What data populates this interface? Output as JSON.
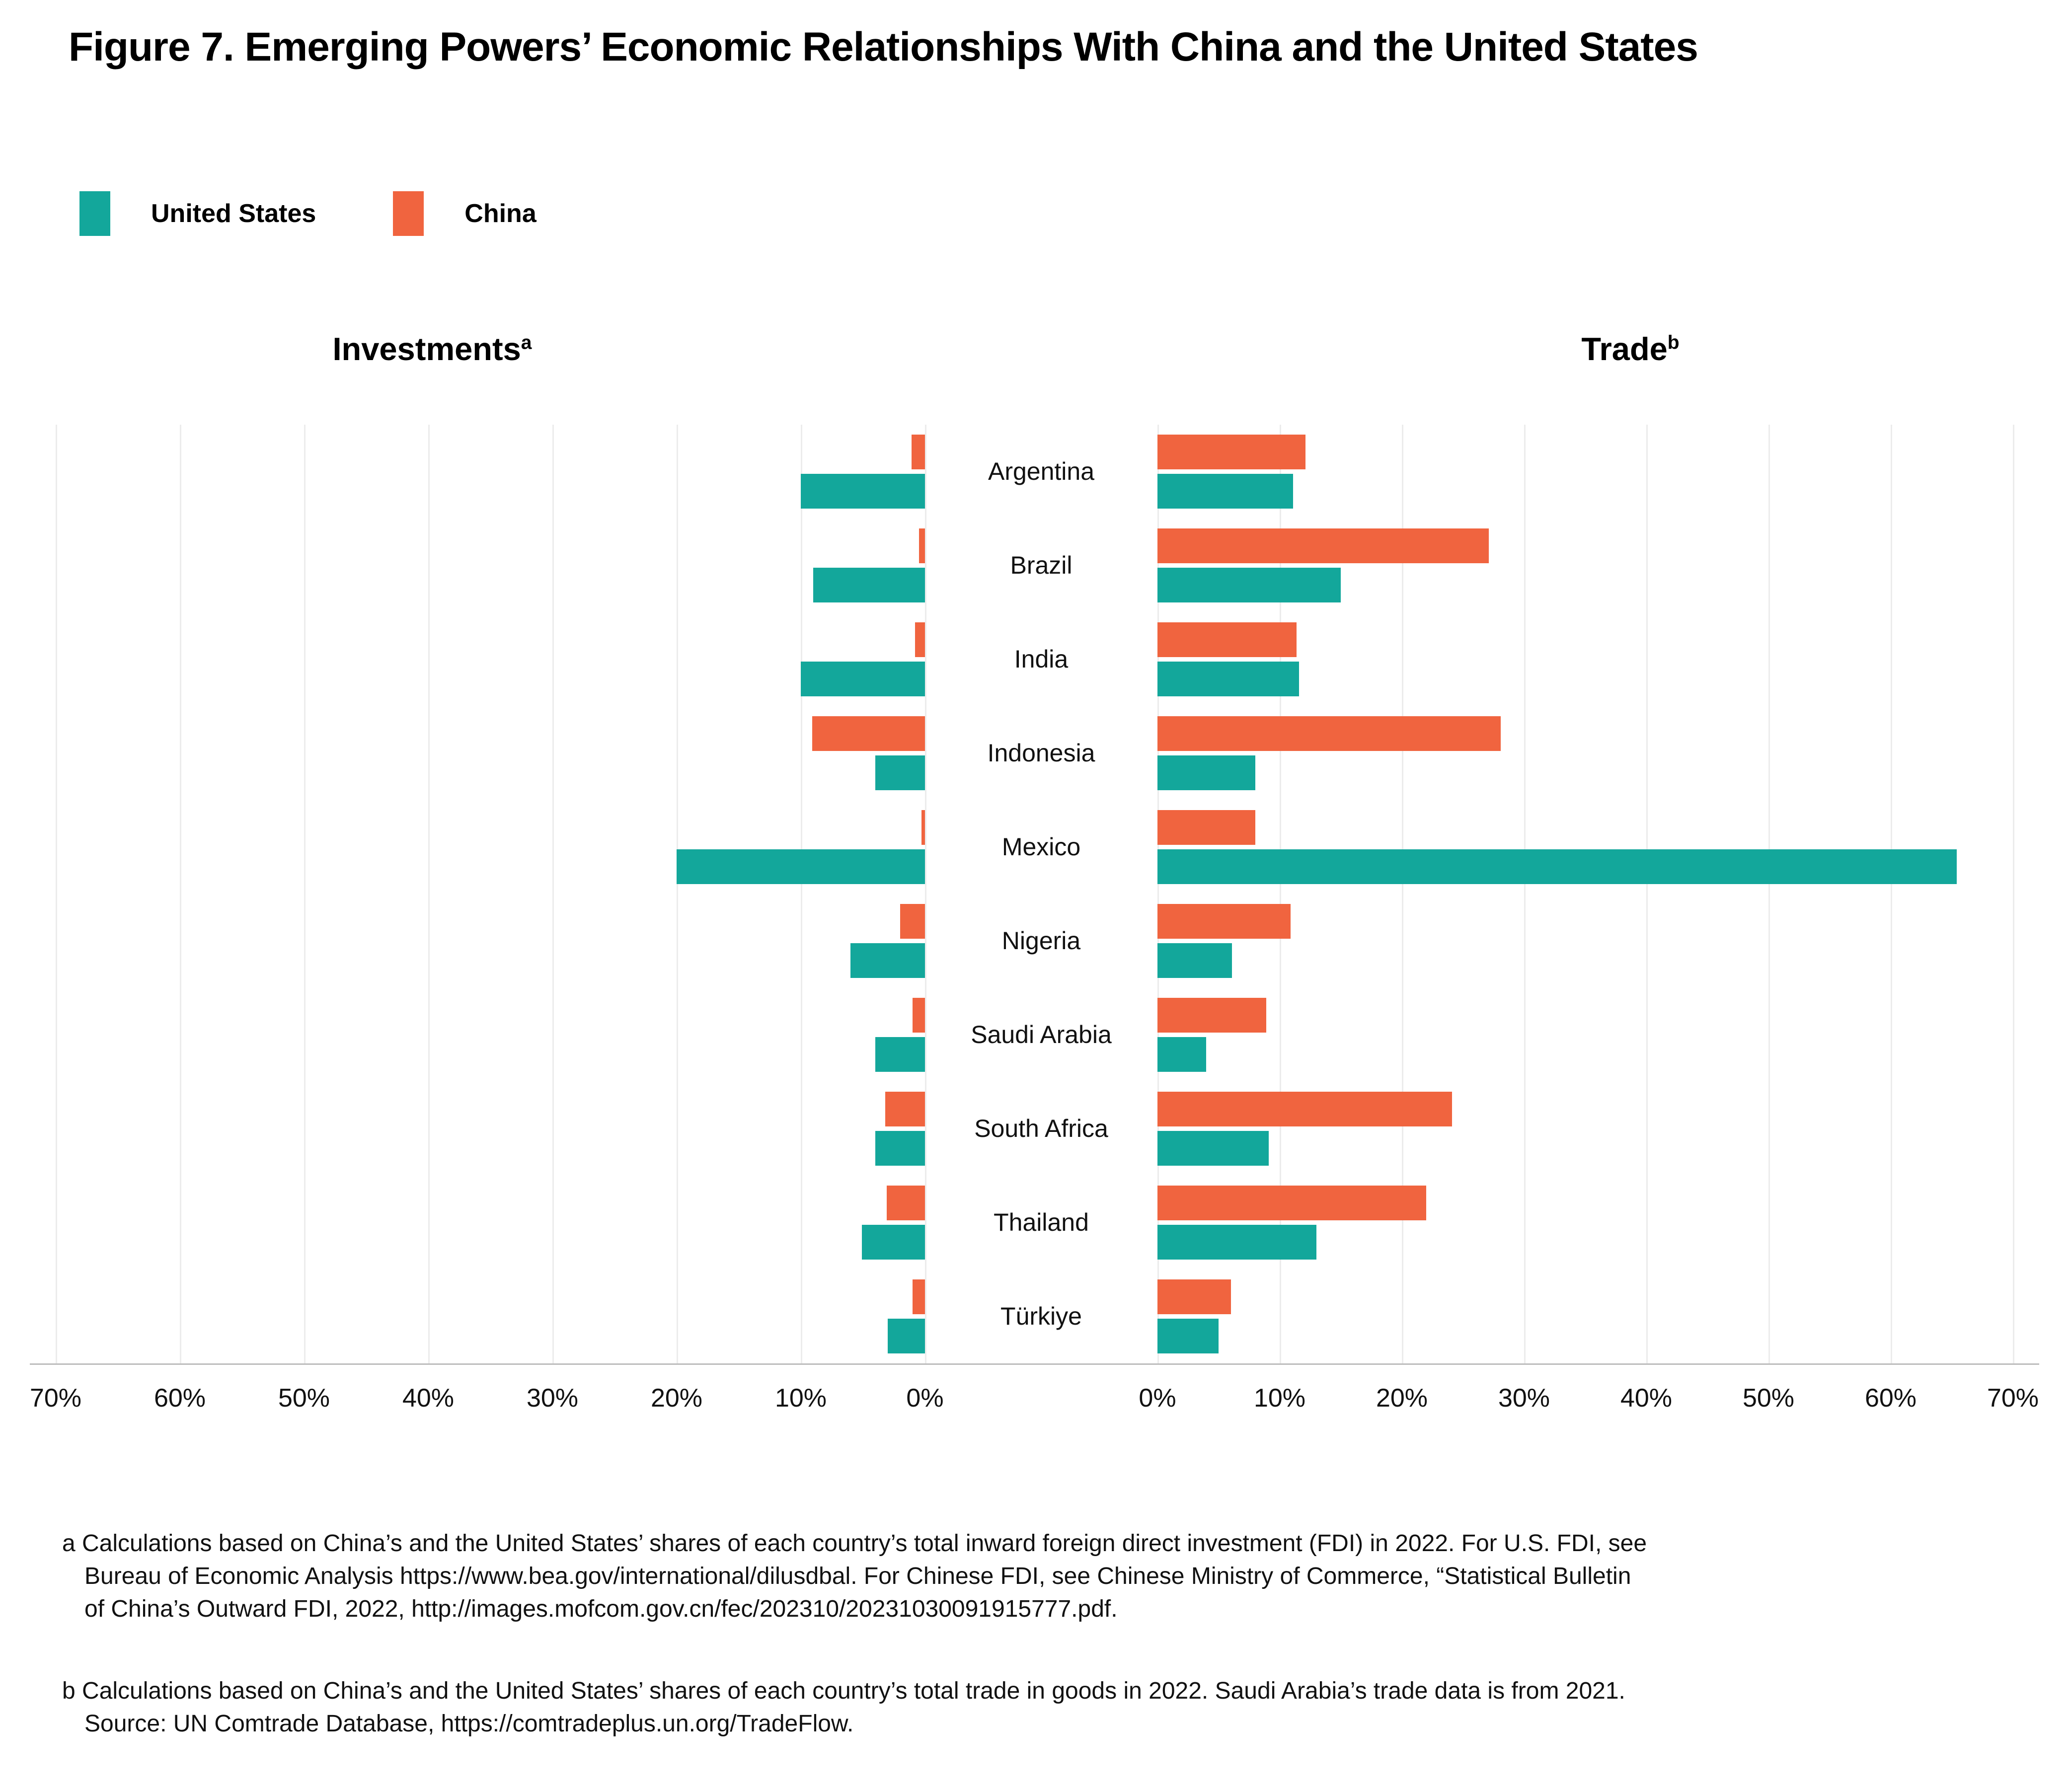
{
  "title": "Figure 7. Emerging Powers’ Economic Relationships With China and the United States",
  "legend": {
    "us_label": "United States",
    "china_label": "China"
  },
  "colors": {
    "us": "#13a79b",
    "china": "#f0643f",
    "gridline": "#ececec",
    "baseline": "#bdbdbd"
  },
  "panels": {
    "investments": {
      "title": "Investments",
      "sup": "a"
    },
    "trade": {
      "title": "Trade",
      "sup": "b"
    }
  },
  "axes": {
    "left_ticks": [
      "70%",
      "60%",
      "50%",
      "40%",
      "30%",
      "20%",
      "10%",
      "0%"
    ],
    "right_ticks": [
      "0%",
      "10%",
      "20%",
      "30%",
      "40%",
      "50%",
      "60%",
      "70%"
    ]
  },
  "chart_data": {
    "type": "bar",
    "orientation": "horizontal-diverging",
    "title": "Emerging Powers' Economic Relationships With China and the United States",
    "categories": [
      "Argentina",
      "Brazil",
      "India",
      "Indonesia",
      "Mexico",
      "Nigeria",
      "Saudi Arabia",
      "South Africa",
      "Thailand",
      "Türkiye"
    ],
    "legend_position": "top-left",
    "grid": true,
    "panels": [
      {
        "name": "Investments",
        "footnote_mark": "a",
        "direction": "left",
        "xlim": [
          0,
          70
        ],
        "unit": "%",
        "series": [
          {
            "name": "China",
            "color": "#f0643f",
            "values": [
              1.1,
              0.5,
              0.8,
              9.1,
              0.3,
              2.0,
              1.0,
              3.2,
              3.1,
              1.0
            ]
          },
          {
            "name": "United States",
            "color": "#13a79b",
            "values": [
              10.0,
              9.0,
              10.0,
              4.0,
              20.0,
              6.0,
              4.0,
              4.0,
              5.1,
              3.0
            ]
          }
        ]
      },
      {
        "name": "Trade",
        "footnote_mark": "b",
        "direction": "right",
        "xlim": [
          0,
          70
        ],
        "unit": "%",
        "series": [
          {
            "name": "China",
            "color": "#f0643f",
            "values": [
              12.1,
              27.1,
              11.4,
              28.1,
              8.0,
              10.9,
              8.9,
              24.1,
              22.0,
              6.0
            ]
          },
          {
            "name": "United States",
            "color": "#13a79b",
            "values": [
              11.1,
              15.0,
              11.6,
              8.0,
              65.4,
              6.1,
              4.0,
              9.1,
              13.0,
              5.0
            ]
          }
        ]
      }
    ]
  },
  "footnotes": {
    "a": [
      "a Calculations based on China’s and the United States’ shares of each country’s total inward foreign direct investment (FDI) in 2022. For U.S. FDI, see",
      "Bureau of Economic Analysis https://www.bea.gov/international/dilusdbal. For Chinese FDI, see Chinese Ministry of Commerce, “Statistical Bulletin",
      "of China’s Outward FDI, 2022, http://images.mofcom.gov.cn/fec/202310/20231030091915777.pdf."
    ],
    "b": [
      "b Calculations based on China’s and the United States’ shares of each country’s total trade in goods in 2022. Saudi Arabia’s trade data is from 2021.",
      "Source: UN Comtrade Database, https://comtradeplus.un.org/TradeFlow."
    ]
  }
}
